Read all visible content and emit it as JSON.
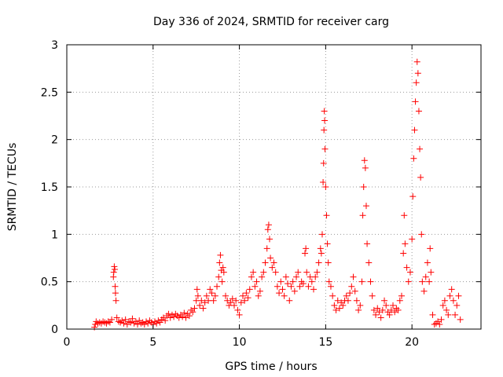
{
  "chart_data": {
    "type": "scatter",
    "title": "Day 336 of 2024, SRMTID for receiver carg",
    "xlabel": "GPS time / hours",
    "ylabel": "SRMTID / TECUs",
    "xlim": [
      0,
      24
    ],
    "ylim": [
      0,
      3
    ],
    "xticks": [
      0,
      5,
      10,
      15,
      20
    ],
    "yticks": [
      0,
      0.5,
      1,
      1.5,
      2,
      2.5,
      3
    ],
    "xtick_labels": [
      "0",
      "5",
      "10",
      "15",
      "20"
    ],
    "ytick_labels": [
      "0",
      "0.5",
      "1",
      "1.5",
      "2",
      "2.5",
      "3"
    ],
    "grid": true,
    "marker": "+",
    "series": [
      {
        "name": "SRMTID",
        "color": "#ff0000",
        "points": [
          [
            1.6,
            0.02
          ],
          [
            1.65,
            0.05
          ],
          [
            1.7,
            0.08
          ],
          [
            1.8,
            0.06
          ],
          [
            1.9,
            0.07
          ],
          [
            2.0,
            0.06
          ],
          [
            2.1,
            0.08
          ],
          [
            2.2,
            0.07
          ],
          [
            2.3,
            0.06
          ],
          [
            2.4,
            0.08
          ],
          [
            2.5,
            0.07
          ],
          [
            2.6,
            0.1
          ],
          [
            2.7,
            0.55
          ],
          [
            2.72,
            0.6
          ],
          [
            2.75,
            0.66
          ],
          [
            2.78,
            0.63
          ],
          [
            2.8,
            0.45
          ],
          [
            2.82,
            0.38
          ],
          [
            2.85,
            0.3
          ],
          [
            2.9,
            0.12
          ],
          [
            3.0,
            0.08
          ],
          [
            3.1,
            0.07
          ],
          [
            3.2,
            0.09
          ],
          [
            3.3,
            0.06
          ],
          [
            3.4,
            0.1
          ],
          [
            3.5,
            0.05
          ],
          [
            3.6,
            0.08
          ],
          [
            3.7,
            0.07
          ],
          [
            3.8,
            0.11
          ],
          [
            3.9,
            0.06
          ],
          [
            4.0,
            0.08
          ],
          [
            4.1,
            0.05
          ],
          [
            4.2,
            0.09
          ],
          [
            4.3,
            0.06
          ],
          [
            4.4,
            0.07
          ],
          [
            4.5,
            0.05
          ],
          [
            4.6,
            0.08
          ],
          [
            4.7,
            0.06
          ],
          [
            4.8,
            0.09
          ],
          [
            4.9,
            0.07
          ],
          [
            5.0,
            0.05
          ],
          [
            5.1,
            0.08
          ],
          [
            5.2,
            0.06
          ],
          [
            5.3,
            0.09
          ],
          [
            5.4,
            0.07
          ],
          [
            5.5,
            0.1
          ],
          [
            5.6,
            0.12
          ],
          [
            5.7,
            0.09
          ],
          [
            5.8,
            0.14
          ],
          [
            5.9,
            0.16
          ],
          [
            6.0,
            0.12
          ],
          [
            6.1,
            0.15
          ],
          [
            6.2,
            0.13
          ],
          [
            6.3,
            0.16
          ],
          [
            6.4,
            0.14
          ],
          [
            6.5,
            0.12
          ],
          [
            6.6,
            0.15
          ],
          [
            6.7,
            0.13
          ],
          [
            6.8,
            0.17
          ],
          [
            6.9,
            0.12
          ],
          [
            7.0,
            0.16
          ],
          [
            7.1,
            0.14
          ],
          [
            7.2,
            0.2
          ],
          [
            7.3,
            0.18
          ],
          [
            7.4,
            0.22
          ],
          [
            7.5,
            0.3
          ],
          [
            7.55,
            0.42
          ],
          [
            7.6,
            0.35
          ],
          [
            7.7,
            0.25
          ],
          [
            7.8,
            0.3
          ],
          [
            7.9,
            0.22
          ],
          [
            8.0,
            0.28
          ],
          [
            8.1,
            0.35
          ],
          [
            8.2,
            0.3
          ],
          [
            8.3,
            0.42
          ],
          [
            8.4,
            0.38
          ],
          [
            8.5,
            0.3
          ],
          [
            8.6,
            0.35
          ],
          [
            8.7,
            0.45
          ],
          [
            8.8,
            0.55
          ],
          [
            8.85,
            0.7
          ],
          [
            8.9,
            0.78
          ],
          [
            8.95,
            0.62
          ],
          [
            9.0,
            0.5
          ],
          [
            9.05,
            0.65
          ],
          [
            9.1,
            0.6
          ],
          [
            9.2,
            0.35
          ],
          [
            9.3,
            0.3
          ],
          [
            9.4,
            0.25
          ],
          [
            9.5,
            0.28
          ],
          [
            9.6,
            0.32
          ],
          [
            9.7,
            0.25
          ],
          [
            9.8,
            0.3
          ],
          [
            9.9,
            0.2
          ],
          [
            10.0,
            0.15
          ],
          [
            10.1,
            0.28
          ],
          [
            10.2,
            0.35
          ],
          [
            10.3,
            0.3
          ],
          [
            10.4,
            0.38
          ],
          [
            10.5,
            0.33
          ],
          [
            10.6,
            0.42
          ],
          [
            10.7,
            0.55
          ],
          [
            10.8,
            0.6
          ],
          [
            10.9,
            0.45
          ],
          [
            11.0,
            0.5
          ],
          [
            11.1,
            0.35
          ],
          [
            11.2,
            0.4
          ],
          [
            11.3,
            0.55
          ],
          [
            11.4,
            0.6
          ],
          [
            11.5,
            0.7
          ],
          [
            11.6,
            0.85
          ],
          [
            11.65,
            1.05
          ],
          [
            11.7,
            1.1
          ],
          [
            11.75,
            0.95
          ],
          [
            11.8,
            0.75
          ],
          [
            11.9,
            0.65
          ],
          [
            12.0,
            0.7
          ],
          [
            12.1,
            0.6
          ],
          [
            12.2,
            0.45
          ],
          [
            12.3,
            0.38
          ],
          [
            12.4,
            0.5
          ],
          [
            12.5,
            0.42
          ],
          [
            12.6,
            0.35
          ],
          [
            12.7,
            0.55
          ],
          [
            12.8,
            0.48
          ],
          [
            12.9,
            0.3
          ],
          [
            13.0,
            0.45
          ],
          [
            13.1,
            0.5
          ],
          [
            13.2,
            0.4
          ],
          [
            13.3,
            0.55
          ],
          [
            13.4,
            0.6
          ],
          [
            13.5,
            0.45
          ],
          [
            13.6,
            0.5
          ],
          [
            13.7,
            0.48
          ],
          [
            13.8,
            0.8
          ],
          [
            13.85,
            0.85
          ],
          [
            13.9,
            0.6
          ],
          [
            14.0,
            0.45
          ],
          [
            14.1,
            0.55
          ],
          [
            14.2,
            0.5
          ],
          [
            14.3,
            0.42
          ],
          [
            14.4,
            0.55
          ],
          [
            14.5,
            0.6
          ],
          [
            14.6,
            0.7
          ],
          [
            14.7,
            0.85
          ],
          [
            14.75,
            0.8
          ],
          [
            14.8,
            1.0
          ],
          [
            14.85,
            1.55
          ],
          [
            14.88,
            1.75
          ],
          [
            14.9,
            2.1
          ],
          [
            14.92,
            2.3
          ],
          [
            14.94,
            2.2
          ],
          [
            14.96,
            1.9
          ],
          [
            15.0,
            1.5
          ],
          [
            15.05,
            1.2
          ],
          [
            15.1,
            0.9
          ],
          [
            15.15,
            0.7
          ],
          [
            15.2,
            0.5
          ],
          [
            15.3,
            0.45
          ],
          [
            15.4,
            0.35
          ],
          [
            15.5,
            0.25
          ],
          [
            15.6,
            0.2
          ],
          [
            15.7,
            0.3
          ],
          [
            15.8,
            0.22
          ],
          [
            15.9,
            0.28
          ],
          [
            16.0,
            0.25
          ],
          [
            16.1,
            0.3
          ],
          [
            16.2,
            0.35
          ],
          [
            16.3,
            0.3
          ],
          [
            16.4,
            0.38
          ],
          [
            16.5,
            0.45
          ],
          [
            16.6,
            0.55
          ],
          [
            16.7,
            0.4
          ],
          [
            16.8,
            0.3
          ],
          [
            16.9,
            0.2
          ],
          [
            17.0,
            0.25
          ],
          [
            17.1,
            0.5
          ],
          [
            17.15,
            1.2
          ],
          [
            17.2,
            1.5
          ],
          [
            17.25,
            1.78
          ],
          [
            17.3,
            1.7
          ],
          [
            17.35,
            1.3
          ],
          [
            17.4,
            0.9
          ],
          [
            17.5,
            0.7
          ],
          [
            17.6,
            0.5
          ],
          [
            17.7,
            0.35
          ],
          [
            17.8,
            0.2
          ],
          [
            17.9,
            0.15
          ],
          [
            18.0,
            0.22
          ],
          [
            18.1,
            0.18
          ],
          [
            18.2,
            0.12
          ],
          [
            18.3,
            0.2
          ],
          [
            18.4,
            0.3
          ],
          [
            18.5,
            0.25
          ],
          [
            18.6,
            0.18
          ],
          [
            18.7,
            0.15
          ],
          [
            18.8,
            0.2
          ],
          [
            18.9,
            0.25
          ],
          [
            19.0,
            0.18
          ],
          [
            19.1,
            0.22
          ],
          [
            19.2,
            0.2
          ],
          [
            19.3,
            0.3
          ],
          [
            19.4,
            0.35
          ],
          [
            19.5,
            0.8
          ],
          [
            19.55,
            1.2
          ],
          [
            19.6,
            0.9
          ],
          [
            19.7,
            0.65
          ],
          [
            19.8,
            0.5
          ],
          [
            19.9,
            0.6
          ],
          [
            20.0,
            0.95
          ],
          [
            20.05,
            1.4
          ],
          [
            20.1,
            1.8
          ],
          [
            20.15,
            2.1
          ],
          [
            20.2,
            2.4
          ],
          [
            20.25,
            2.6
          ],
          [
            20.3,
            2.82
          ],
          [
            20.35,
            2.7
          ],
          [
            20.4,
            2.3
          ],
          [
            20.45,
            1.9
          ],
          [
            20.5,
            1.6
          ],
          [
            20.55,
            1.0
          ],
          [
            20.6,
            0.5
          ],
          [
            20.7,
            0.4
          ],
          [
            20.8,
            0.55
          ],
          [
            20.9,
            0.7
          ],
          [
            21.0,
            0.5
          ],
          [
            21.05,
            0.85
          ],
          [
            21.1,
            0.6
          ],
          [
            21.2,
            0.15
          ],
          [
            21.3,
            0.05
          ],
          [
            21.4,
            0.06
          ],
          [
            21.5,
            0.08
          ],
          [
            21.6,
            0.05
          ],
          [
            21.7,
            0.1
          ],
          [
            21.8,
            0.25
          ],
          [
            21.9,
            0.3
          ],
          [
            22.0,
            0.2
          ],
          [
            22.1,
            0.15
          ],
          [
            22.2,
            0.35
          ],
          [
            22.3,
            0.42
          ],
          [
            22.4,
            0.3
          ],
          [
            22.5,
            0.15
          ],
          [
            22.6,
            0.25
          ],
          [
            22.7,
            0.35
          ],
          [
            22.8,
            0.1
          ]
        ]
      }
    ]
  }
}
